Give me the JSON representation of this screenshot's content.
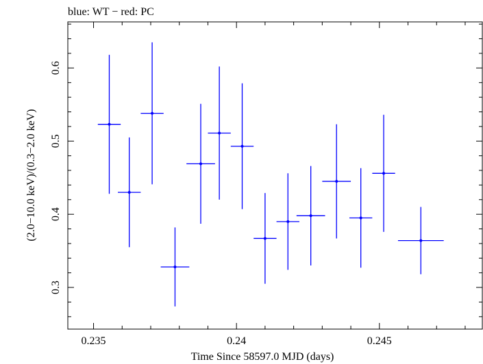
{
  "chart_data": {
    "type": "scatter",
    "title": "blue: WT − red: PC",
    "xlabel": "Time Since 58597.0 MJD (days)",
    "ylabel": "(2.0−10.0 keV)/(0.3−2.0 keV)",
    "xlim": [
      0.2341,
      0.2486
    ],
    "ylim": [
      0.243,
      0.663
    ],
    "x_ticks": [
      0.235,
      0.24,
      0.245
    ],
    "x_tick_labels": [
      "0.235",
      "0.24",
      "0.245"
    ],
    "y_ticks": [
      0.3,
      0.4,
      0.5,
      0.6
    ],
    "y_tick_labels": [
      "0.3",
      "0.4",
      "0.5",
      "0.6"
    ],
    "grid": false,
    "series": [
      {
        "color": "#0000ff",
        "points": [
          {
            "x": 0.23555,
            "xerr": 0.0004,
            "y": 0.523,
            "yerr": 0.095
          },
          {
            "x": 0.23625,
            "xerr": 0.0004,
            "y": 0.43,
            "yerr": 0.075
          },
          {
            "x": 0.23705,
            "xerr": 0.0004,
            "y": 0.538,
            "yerr": 0.097
          },
          {
            "x": 0.23785,
            "xerr": 0.0005,
            "y": 0.328,
            "yerr": 0.054
          },
          {
            "x": 0.23875,
            "xerr": 0.0005,
            "y": 0.469,
            "yerr": 0.082
          },
          {
            "x": 0.2394,
            "xerr": 0.0004,
            "y": 0.511,
            "yerr": 0.091
          },
          {
            "x": 0.2402,
            "xerr": 0.0004,
            "y": 0.493,
            "yerr": 0.086
          },
          {
            "x": 0.241,
            "xerr": 0.0004,
            "y": 0.367,
            "yerr": 0.062
          },
          {
            "x": 0.2418,
            "xerr": 0.0004,
            "y": 0.39,
            "yerr": 0.066
          },
          {
            "x": 0.2426,
            "xerr": 0.0005,
            "y": 0.398,
            "yerr": 0.068
          },
          {
            "x": 0.2435,
            "xerr": 0.0005,
            "y": 0.445,
            "yerr": 0.078
          },
          {
            "x": 0.24435,
            "xerr": 0.0004,
            "y": 0.395,
            "yerr": 0.068
          },
          {
            "x": 0.24515,
            "xerr": 0.0004,
            "y": 0.456,
            "yerr": 0.08
          },
          {
            "x": 0.24645,
            "xerr": 0.0008,
            "y": 0.364,
            "yerr": 0.046
          }
        ]
      }
    ]
  }
}
